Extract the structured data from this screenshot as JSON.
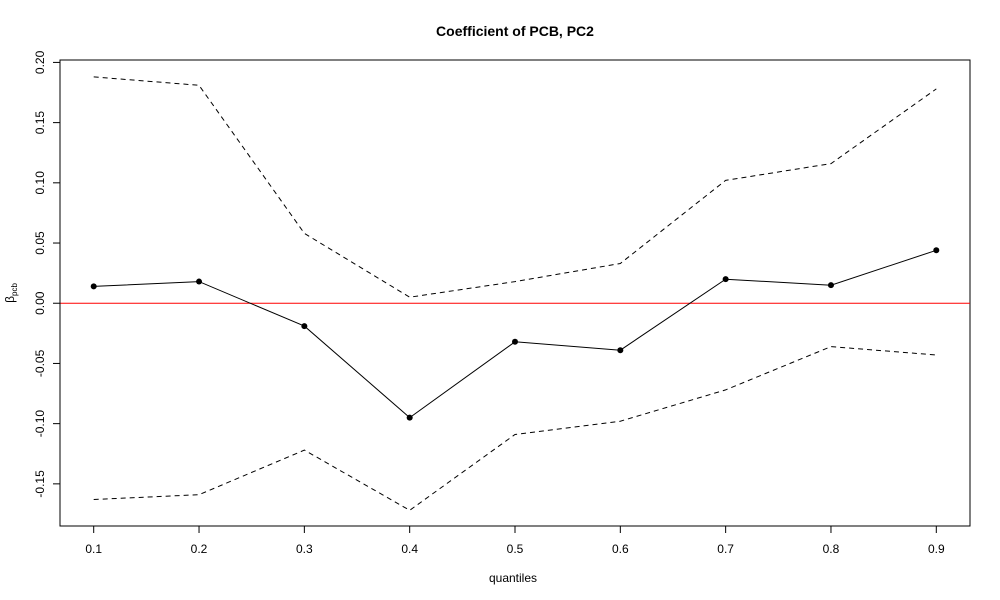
{
  "chart_data": {
    "type": "line",
    "title": "Coefficient of PCB, PC2",
    "xlabel": "quantiles",
    "ylabel_symbol": "β",
    "ylabel_subscript": "pcb",
    "x": [
      0.1,
      0.2,
      0.3,
      0.4,
      0.5,
      0.6,
      0.7,
      0.8,
      0.9
    ],
    "x_tick_labels": [
      "0.1",
      "0.2",
      "0.3",
      "0.4",
      "0.5",
      "0.6",
      "0.7",
      "0.8",
      "0.9"
    ],
    "y_ticks": [
      -0.15,
      -0.1,
      -0.05,
      0.0,
      0.05,
      0.1,
      0.15,
      0.2
    ],
    "y_tick_labels": [
      "-0.15",
      "-0.10",
      "-0.05",
      "0.00",
      "0.05",
      "0.10",
      "0.15",
      "0.20"
    ],
    "xlim": [
      0.068,
      0.932
    ],
    "ylim": [
      -0.185,
      0.202
    ],
    "grid": false,
    "series": [
      {
        "style": "solid",
        "markers": true,
        "color": "#000000",
        "values": [
          0.014,
          0.018,
          -0.019,
          -0.095,
          -0.032,
          -0.039,
          0.02,
          0.015,
          0.044
        ]
      },
      {
        "style": "dashed",
        "markers": false,
        "color": "#000000",
        "values": [
          0.188,
          0.181,
          0.058,
          0.005,
          0.018,
          0.033,
          0.102,
          0.116,
          0.178
        ]
      },
      {
        "style": "dashed",
        "markers": false,
        "color": "#000000",
        "values": [
          -0.163,
          -0.159,
          -0.122,
          -0.172,
          -0.109,
          -0.098,
          -0.072,
          -0.036,
          -0.043
        ]
      }
    ],
    "reference_line": {
      "y": 0,
      "color": "#ff0000"
    }
  }
}
